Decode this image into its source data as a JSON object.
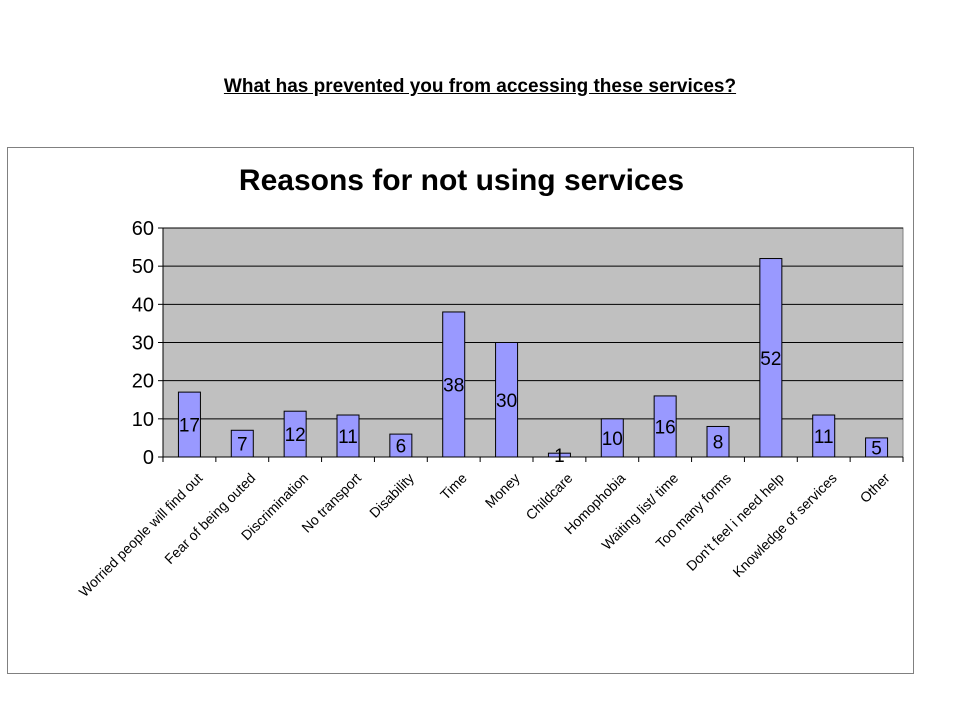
{
  "page": {
    "heading": "What has prevented you from accessing these services?"
  },
  "chart_data": {
    "type": "bar",
    "title": "Reasons for not using services",
    "xlabel": "",
    "ylabel": "",
    "ylim": [
      0,
      60
    ],
    "yticks": [
      "0",
      "10",
      "20",
      "30",
      "40",
      "50",
      "60"
    ],
    "grid": true,
    "legend": "none",
    "categories": [
      "Worried people will find out",
      "Fear of being outed",
      "Discrimination",
      "No transport",
      "Disability",
      "Time",
      "Money",
      "Childcare",
      "Homophobia",
      "Waiting list/ time",
      "Too many forms",
      "Don't feel i need help",
      "Knowledge of services",
      "Other"
    ],
    "values": [
      17,
      7,
      12,
      11,
      6,
      38,
      30,
      1,
      10,
      16,
      8,
      52,
      11,
      5
    ],
    "colors": {
      "bar_fill": "#9999ff",
      "bar_stroke": "#000000",
      "plot_background": "#c0c0c0",
      "gridline": "#000000"
    }
  }
}
